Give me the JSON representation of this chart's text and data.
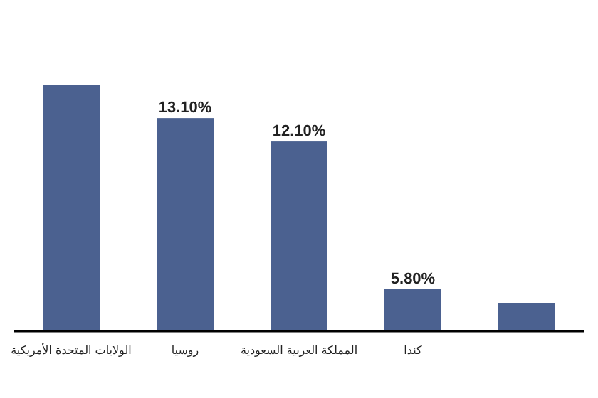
{
  "chart_data": {
    "type": "bar",
    "categories": [
      "الولايات المتحدة الأمريكية",
      "روسيا",
      "المملكة العربية السعودية",
      "كندا",
      null
    ],
    "values": [
      14.5,
      13.1,
      12.1,
      5.8,
      5.2
    ],
    "value_labels": [
      null,
      "13.10%",
      "12.10%",
      "5.80%",
      null
    ],
    "color": "#4b6190",
    "ylim": [
      4,
      14.5
    ]
  }
}
